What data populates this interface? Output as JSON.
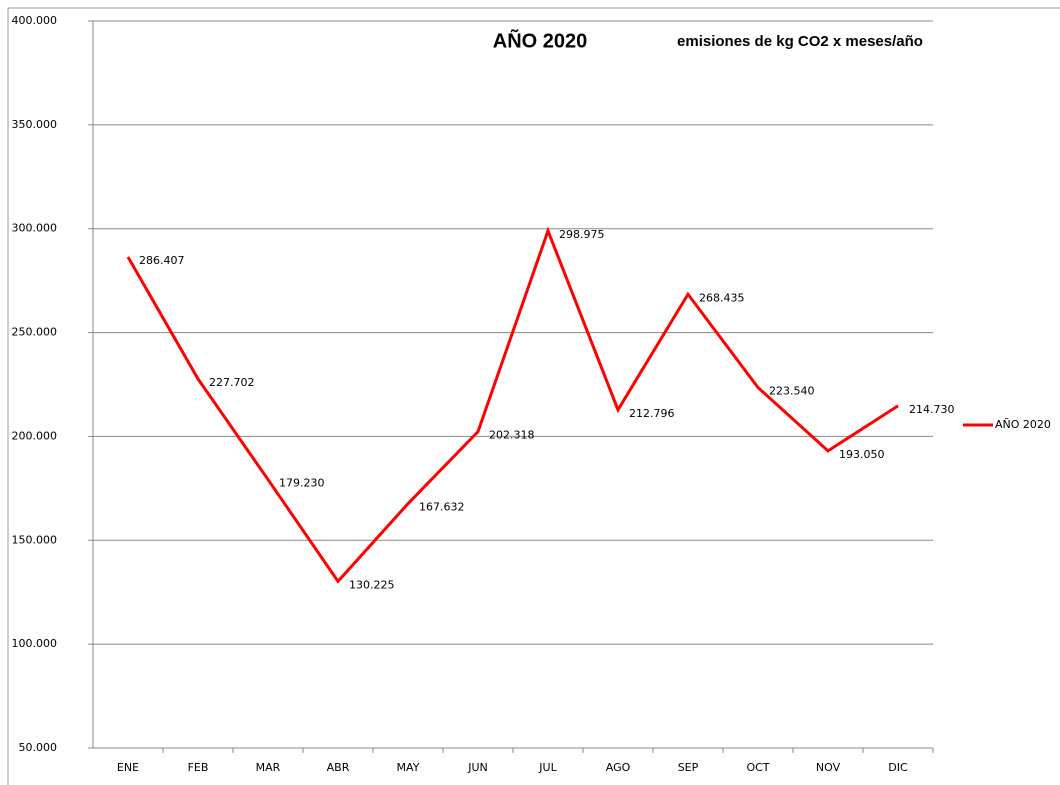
{
  "chart_data": {
    "type": "line",
    "title": "AÑO 2020",
    "subtitle": "emisiones de kg CO2 x meses/año",
    "categories": [
      "ENE",
      "FEB",
      "MAR",
      "ABR",
      "MAY",
      "JUN",
      "JUL",
      "AGO",
      "SEP",
      "OCT",
      "NOV",
      "DIC"
    ],
    "series": [
      {
        "name": "AÑO 2020",
        "color": "#ff0000",
        "values": [
          286407,
          227702,
          179230,
          130225,
          167632,
          202318,
          298975,
          212796,
          268435,
          223540,
          193050,
          214730
        ],
        "value_labels": [
          "286.407",
          "227.702",
          "179.230",
          "130.225",
          "167.632",
          "202.318",
          "298.975",
          "212.796",
          "268.435",
          "223.540",
          "193.050",
          "214.730"
        ]
      }
    ],
    "ylim": [
      50000,
      400000
    ],
    "yticks": [
      {
        "value": 50000,
        "label": "50.000"
      },
      {
        "value": 100000,
        "label": "100.000"
      },
      {
        "value": 150000,
        "label": "150.000"
      },
      {
        "value": 200000,
        "label": "200.000"
      },
      {
        "value": 250000,
        "label": "250.000"
      },
      {
        "value": 300000,
        "label": "300.000"
      },
      {
        "value": 350000,
        "label": "350.000"
      },
      {
        "value": 400000,
        "label": "400.000"
      }
    ],
    "grid": true,
    "legend": "right"
  }
}
